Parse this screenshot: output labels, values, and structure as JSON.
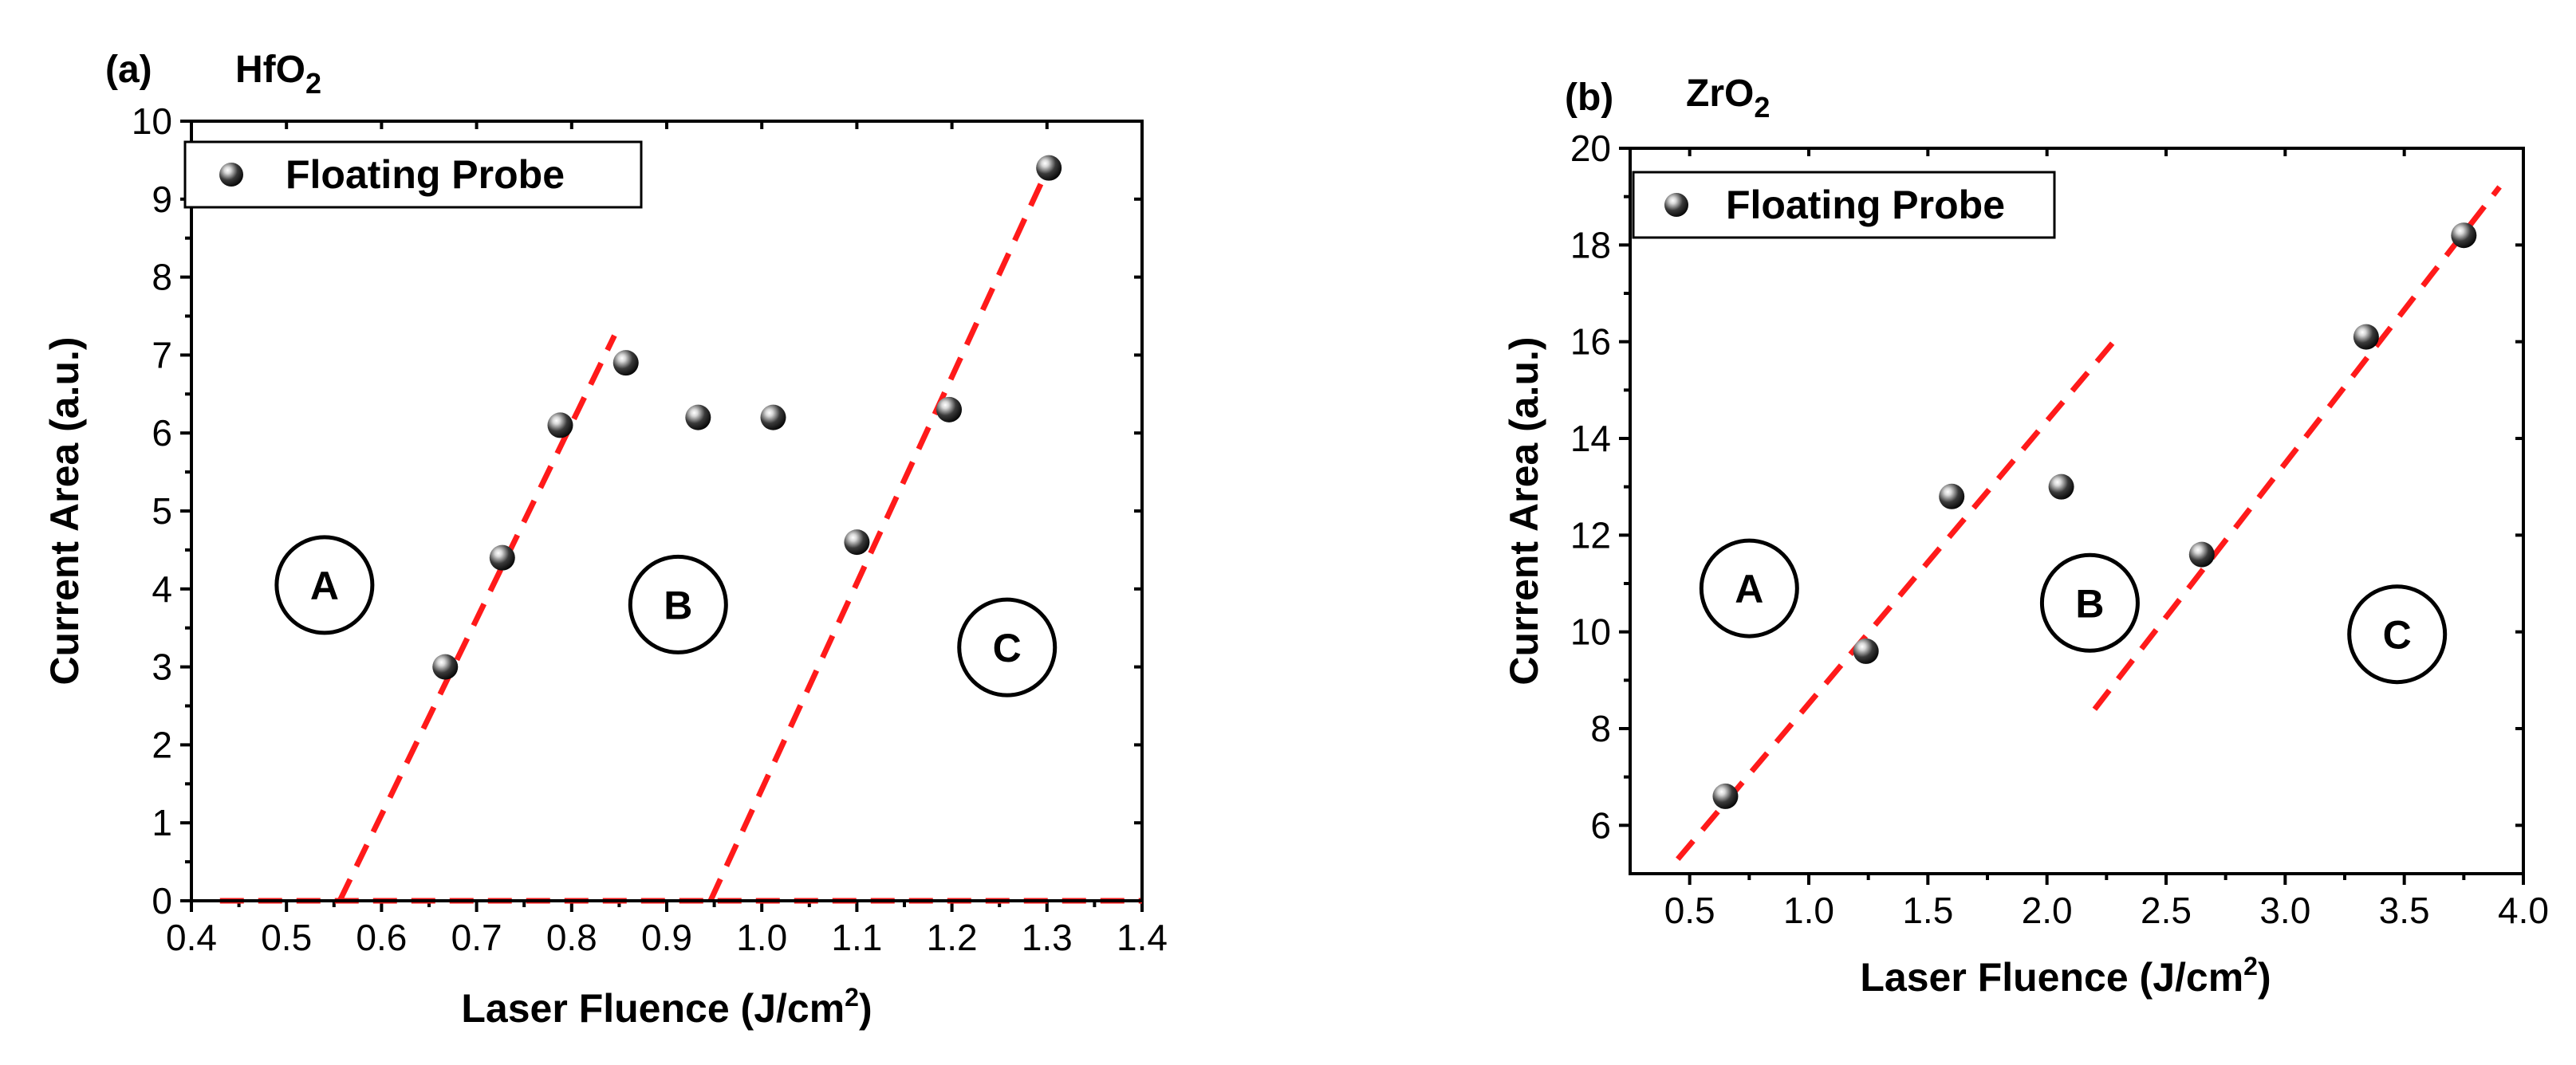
{
  "chart_data": [
    {
      "type": "scatter",
      "panel_label": "(a)",
      "material": "HfO",
      "material_subscript": "2",
      "xlabel": "Laser Fluence (J/cm",
      "xlabel_sup": "2",
      "xlabel_end": ")",
      "ylabel": "Current Area (a.u.)",
      "xlim": [
        0.4,
        1.4
      ],
      "ylim": [
        0,
        10
      ],
      "xticks": [
        0.4,
        0.5,
        0.6,
        0.7,
        0.8,
        0.9,
        1.0,
        1.1,
        1.2,
        1.3,
        1.4
      ],
      "xtick_labels": [
        "0.4",
        "0.5",
        "0.6",
        "0.7",
        "0.8",
        "0.9",
        "1.0",
        "1.1",
        "1.2",
        "1.3",
        "1.4"
      ],
      "yticks": [
        0,
        1,
        2,
        3,
        4,
        5,
        6,
        7,
        8,
        9,
        10
      ],
      "ytick_labels": [
        "0",
        "1",
        "2",
        "3",
        "4",
        "5",
        "6",
        "7",
        "8",
        "9",
        "10"
      ],
      "legend": {
        "label": "Floating Probe",
        "position": "top-left"
      },
      "series": [
        {
          "name": "Floating Probe",
          "x": [
            0.667,
            0.727,
            0.788,
            0.857,
            0.933,
            1.012,
            1.1,
            1.197,
            1.302
          ],
          "y": [
            3.0,
            4.4,
            6.1,
            6.9,
            6.2,
            6.2,
            4.6,
            6.3,
            9.4
          ]
        }
      ],
      "fit_lines": [
        {
          "x": [
            0.43,
            1.4
          ],
          "y": [
            0,
            0
          ]
        },
        {
          "x": [
            0.556,
            0.845
          ],
          "y": [
            0,
            7.25
          ]
        },
        {
          "x": [
            0.946,
            1.305
          ],
          "y": [
            0,
            9.5
          ]
        }
      ],
      "regions": [
        {
          "label": "A",
          "x": 0.54,
          "y": 4.05
        },
        {
          "label": "B",
          "x": 0.912,
          "y": 3.8
        },
        {
          "label": "C",
          "x": 1.258,
          "y": 3.25
        }
      ]
    },
    {
      "type": "scatter",
      "panel_label": "(b)",
      "material": "ZrO",
      "material_subscript": "2",
      "xlabel": "Laser Fluence (J/cm",
      "xlabel_sup": "2",
      "xlabel_end": ")",
      "ylabel": "Current Area (a.u.)",
      "xlim": [
        0.25,
        4.0
      ],
      "ylim": [
        5,
        20
      ],
      "xticks": [
        0.5,
        1.0,
        1.5,
        2.0,
        2.5,
        3.0,
        3.5,
        4.0
      ],
      "xtick_labels": [
        "0.5",
        "1.0",
        "1.5",
        "2.0",
        "2.5",
        "3.0",
        "3.5",
        "4.0"
      ],
      "yticks": [
        6,
        8,
        10,
        12,
        14,
        16,
        18,
        20
      ],
      "ytick_labels": [
        "6",
        "8",
        "10",
        "12",
        "14",
        "16",
        "18",
        "20"
      ],
      "legend": {
        "label": "Floating Probe",
        "position": "top-left"
      },
      "series": [
        {
          "name": "Floating Probe",
          "x": [
            0.65,
            1.24,
            1.6,
            2.06,
            2.65,
            3.34,
            3.75
          ],
          "y": [
            6.6,
            9.6,
            12.8,
            13.0,
            11.6,
            16.1,
            18.2
          ]
        }
      ],
      "fit_lines": [
        {
          "x": [
            0.45,
            2.28
          ],
          "y": [
            5.3,
            16.0
          ]
        },
        {
          "x": [
            2.2,
            3.9
          ],
          "y": [
            8.4,
            19.2
          ]
        }
      ],
      "regions": [
        {
          "label": "A",
          "x": 0.75,
          "y": 10.9
        },
        {
          "label": "B",
          "x": 2.18,
          "y": 10.6
        },
        {
          "label": "C",
          "x": 3.47,
          "y": 9.95
        }
      ]
    }
  ]
}
